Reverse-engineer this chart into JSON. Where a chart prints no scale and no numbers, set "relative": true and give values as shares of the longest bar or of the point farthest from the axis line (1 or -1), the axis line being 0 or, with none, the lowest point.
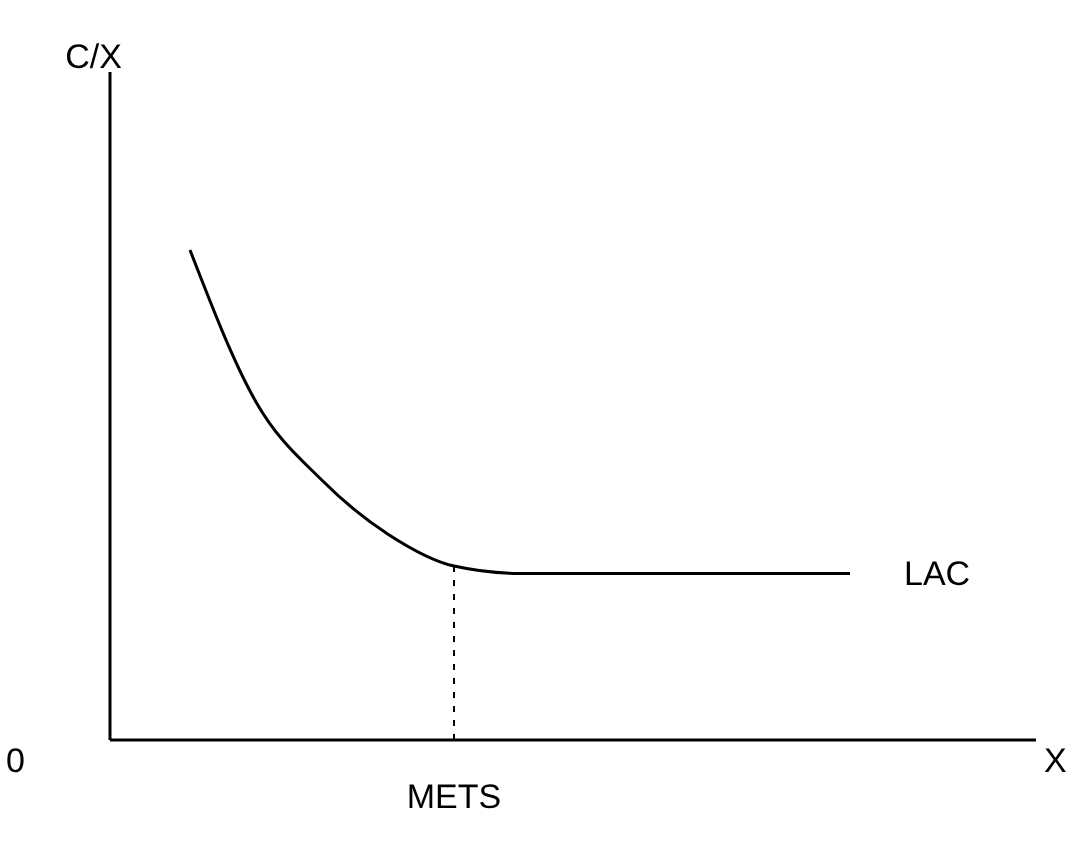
{
  "chart_data": {
    "type": "line",
    "relative": true,
    "xlabel": "X",
    "annotations": [
      "0",
      {
        "text": "METS"
      },
      "C/X"
    ],
    "categories": [
      null,
      null,
      null,
      null,
      null,
      null,
      null,
      null,
      null,
      null,
      null
    ],
    "series": [
      {
        "name": "LAC",
        "color": "#000000",
        "values": [
          1,
          0.69,
          0.53,
          0.42,
          0.355,
          0.34,
          0.34,
          0.34,
          0.34,
          0.34,
          0.34
        ]
      }
    ]
  }
}
